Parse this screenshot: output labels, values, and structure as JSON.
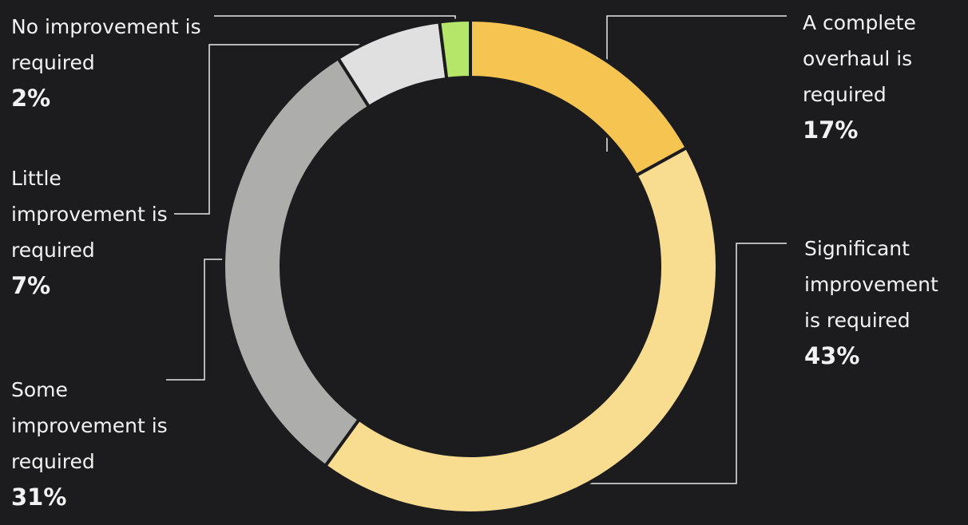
{
  "chart_data": {
    "type": "donut",
    "categories": [
      "A complete overhaul is required",
      "Significant improvement is required",
      "Some improvement is required",
      "Little improvement is required",
      "No improvement is required"
    ],
    "values": [
      17,
      43,
      31,
      7,
      2
    ],
    "value_labels": [
      "17%",
      "43%",
      "31%",
      "7%",
      "2%"
    ],
    "colors": [
      "#f5c451",
      "#f8dc8f",
      "#adadab",
      "#e0e0e0",
      "#b5e66a"
    ]
  }
}
